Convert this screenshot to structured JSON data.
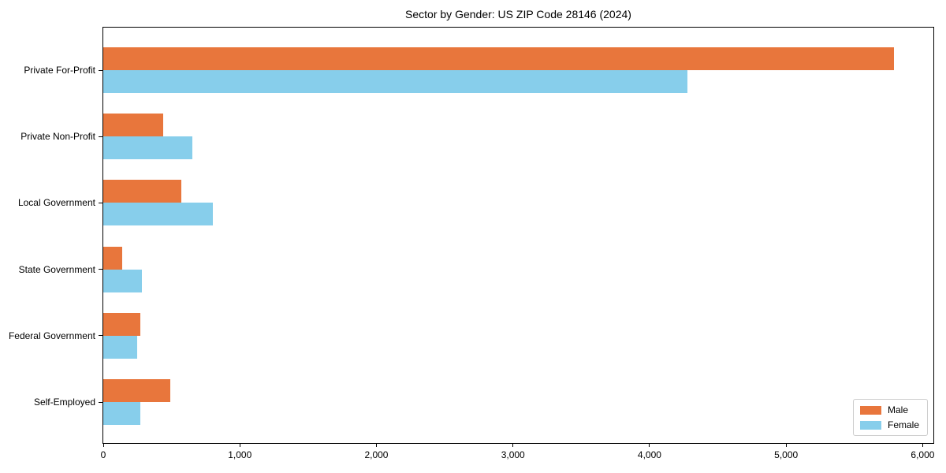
{
  "chart_data": {
    "type": "bar",
    "orientation": "horizontal",
    "title": "Sector by Gender: US ZIP Code 28146 (2024)",
    "categories": [
      "Private For-Profit",
      "Private Non-Profit",
      "Local Government",
      "State Government",
      "Federal Government",
      "Self-Employed"
    ],
    "series": [
      {
        "name": "Male",
        "color": "#e8763c",
        "values": [
          5790,
          440,
          570,
          140,
          270,
          490
        ]
      },
      {
        "name": "Female",
        "color": "#87ceeb",
        "values": [
          4280,
          650,
          800,
          280,
          250,
          270
        ]
      }
    ],
    "xlabel": "",
    "ylabel": "",
    "xlim": [
      0,
      6090
    ],
    "xticks": [
      {
        "value": 0,
        "label": "0"
      },
      {
        "value": 1000,
        "label": "1,000"
      },
      {
        "value": 2000,
        "label": "2,000"
      },
      {
        "value": 3000,
        "label": "3,000"
      },
      {
        "value": 4000,
        "label": "4,000"
      },
      {
        "value": 5000,
        "label": "5,000"
      },
      {
        "value": 6000,
        "label": "6,000"
      }
    ],
    "grid": false,
    "legend_position": "lower right"
  }
}
